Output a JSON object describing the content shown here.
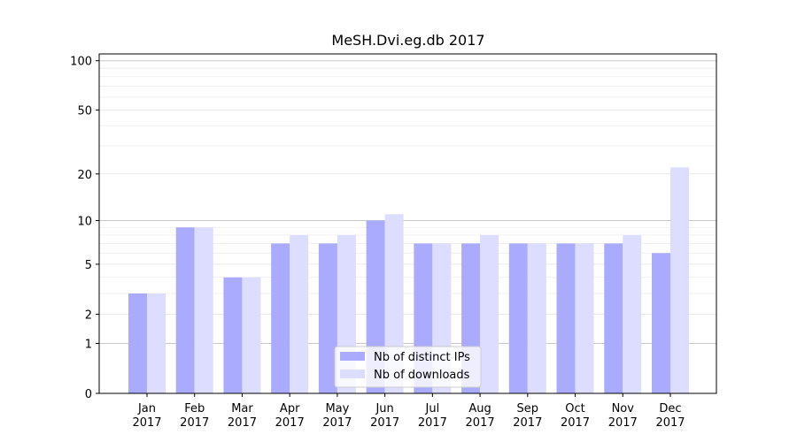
{
  "chart_data": {
    "type": "bar",
    "title": "MeSH.Dvi.eg.db 2017",
    "y_scale": "log(1+y)",
    "ylim": [
      0,
      110
    ],
    "y_ticks": [
      {
        "value": 0,
        "label": "0"
      },
      {
        "value": 1,
        "label": "1"
      },
      {
        "value": 2,
        "label": "2"
      },
      {
        "value": 5,
        "label": "5"
      },
      {
        "value": 10,
        "label": "10"
      },
      {
        "value": 20,
        "label": "20"
      },
      {
        "value": 50,
        "label": "50"
      },
      {
        "value": 100,
        "label": "100"
      }
    ],
    "categories": [
      {
        "month": "Jan",
        "year": "2017"
      },
      {
        "month": "Feb",
        "year": "2017"
      },
      {
        "month": "Mar",
        "year": "2017"
      },
      {
        "month": "Apr",
        "year": "2017"
      },
      {
        "month": "May",
        "year": "2017"
      },
      {
        "month": "Jun",
        "year": "2017"
      },
      {
        "month": "Jul",
        "year": "2017"
      },
      {
        "month": "Aug",
        "year": "2017"
      },
      {
        "month": "Sep",
        "year": "2017"
      },
      {
        "month": "Oct",
        "year": "2017"
      },
      {
        "month": "Nov",
        "year": "2017"
      },
      {
        "month": "Dec",
        "year": "2017"
      }
    ],
    "series": [
      {
        "name": "Nb of distinct IPs",
        "color": "#aaaaff",
        "values": [
          3,
          9,
          4,
          7,
          7,
          10,
          7,
          7,
          7,
          7,
          7,
          6
        ]
      },
      {
        "name": "Nb of downloads",
        "color": "#ddddff",
        "values": [
          3,
          9,
          4,
          8,
          8,
          11,
          7,
          8,
          7,
          7,
          8,
          22
        ]
      }
    ],
    "grid": true,
    "legend_position": "bottom-center"
  }
}
